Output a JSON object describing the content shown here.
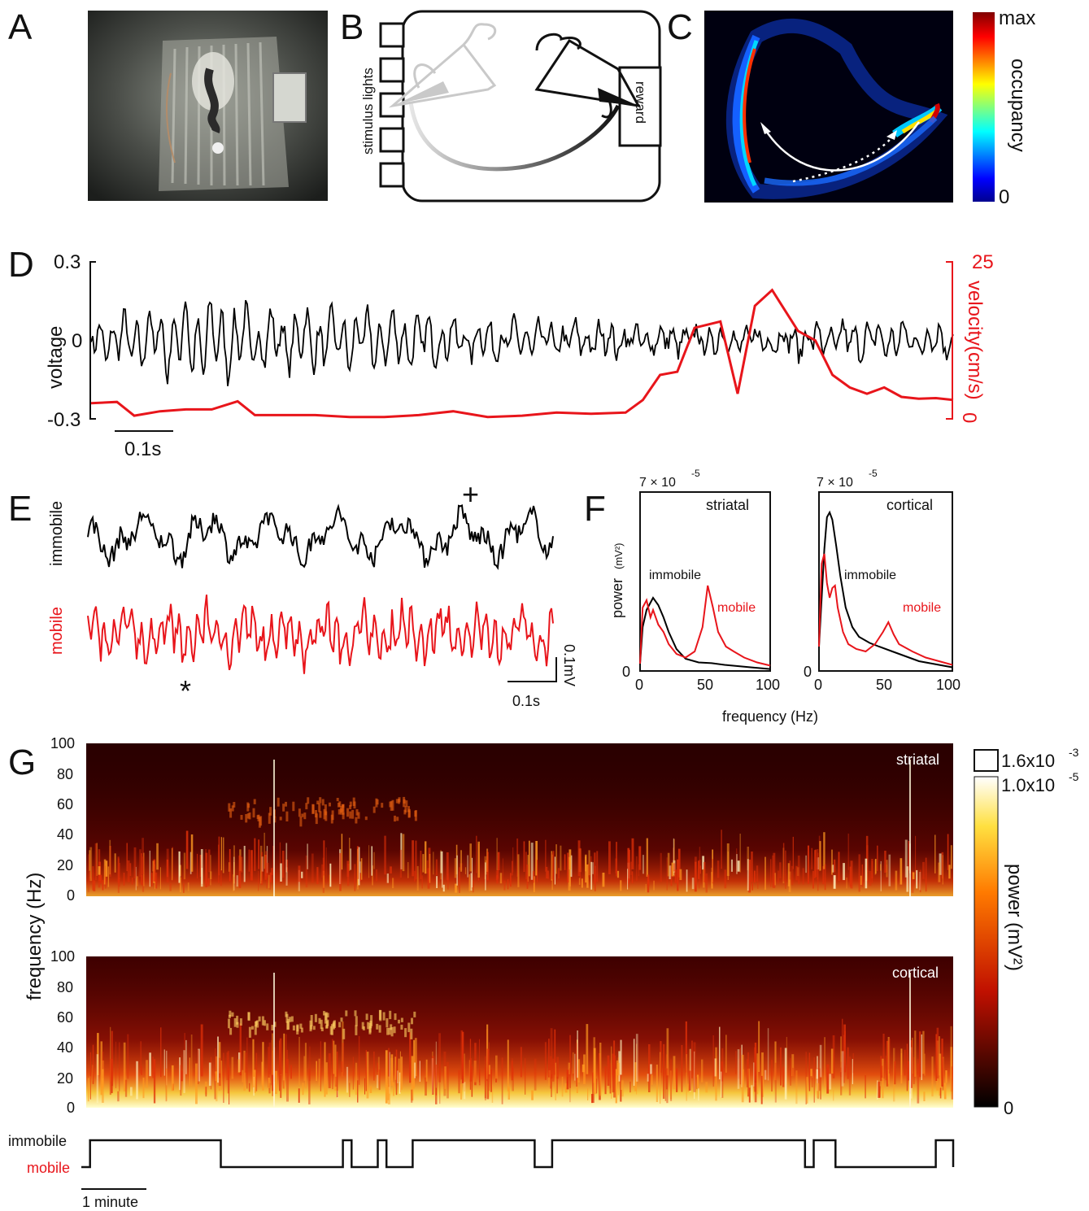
{
  "panels": {
    "A": {
      "label": "A"
    },
    "B": {
      "label": "B",
      "stimulus_label": "stimulus lights",
      "reward_label": "reward"
    },
    "C": {
      "label": "C",
      "colorbar_max": "max",
      "colorbar_min": "0",
      "colorbar_label": "occupancy"
    },
    "D": {
      "label": "D",
      "voltage_label": "voltage",
      "velocity_label": "velocity(cm/s)",
      "y_top": "0.3",
      "y_mid": "0",
      "y_bottom": "-0.3",
      "v_top": "25",
      "v_bottom": "0",
      "scale_label": "0.1s",
      "colors": {
        "lfp": "#000000",
        "velocity": "#e8151b"
      }
    },
    "E": {
      "label": "E",
      "immobile_label": "immobile",
      "mobile_label": "mobile",
      "plus": "+",
      "star": "*",
      "scale_v": "0.1mV",
      "scale_t": "0.1s"
    },
    "F": {
      "label": "F",
      "ylabel": "power",
      "yunit": "(mV²)",
      "xlabel": "frequency (Hz)",
      "exponent_base": "7 × 10",
      "exponent": "-5",
      "subplots": [
        {
          "title": "striatal",
          "immobile_label": "immobile",
          "mobile_label": "mobile"
        },
        {
          "title": "cortical",
          "immobile_label": "immobile",
          "mobile_label": "mobile"
        }
      ],
      "xticks": [
        "0",
        "50",
        "100"
      ],
      "y0": "0"
    },
    "G": {
      "label": "G",
      "ylabel": "frequency (Hz)",
      "yticks": [
        "100",
        "80",
        "60",
        "40",
        "20",
        "0"
      ],
      "striatal_title": "striatal",
      "cortical_title": "cortical",
      "cb_top_base": "1.6x10",
      "cb_top_exp": "-3",
      "cb_base": "1.0x10",
      "cb_exp": "-5",
      "cb_zero": "0",
      "cb_label": "power (mV²)",
      "state_immobile": "immobile",
      "state_mobile": "mobile",
      "scale_label": "1 minute"
    }
  },
  "chart_data": [
    {
      "type": "line",
      "panel": "F-striatal",
      "x_range": [
        0,
        100
      ],
      "series": [
        {
          "name": "immobile",
          "color": "#000000",
          "x": [
            0,
            2,
            5,
            8,
            10,
            14,
            18,
            22,
            28,
            35,
            45,
            55,
            65,
            75,
            85,
            100
          ],
          "y": [
            0.3,
            1.8,
            2.5,
            2.8,
            3.0,
            2.7,
            2.2,
            1.6,
            0.9,
            0.5,
            0.35,
            0.32,
            0.25,
            0.2,
            0.15,
            0.08
          ]
        },
        {
          "name": "mobile",
          "color": "#e8151b",
          "x": [
            0,
            2,
            5,
            8,
            10,
            14,
            18,
            22,
            28,
            35,
            42,
            48,
            52,
            56,
            60,
            66,
            72,
            80,
            90,
            100
          ],
          "y": [
            0.3,
            2.6,
            2.9,
            2.2,
            2.5,
            1.9,
            1.6,
            1.1,
            0.7,
            0.55,
            0.8,
            1.8,
            3.5,
            2.6,
            1.6,
            1.0,
            0.8,
            0.55,
            0.35,
            0.22
          ]
        }
      ]
    },
    {
      "type": "line",
      "panel": "F-cortical",
      "x_range": [
        0,
        100
      ],
      "series": [
        {
          "name": "immobile",
          "color": "#000000",
          "x": [
            0,
            2,
            4,
            6,
            8,
            10,
            13,
            16,
            20,
            25,
            30,
            38,
            45,
            55,
            65,
            75,
            85,
            100
          ],
          "y": [
            1.0,
            3.0,
            5.0,
            6.3,
            6.5,
            6.2,
            5.1,
            3.9,
            2.6,
            1.8,
            1.4,
            1.15,
            1.0,
            0.8,
            0.6,
            0.4,
            0.3,
            0.15
          ]
        },
        {
          "name": "mobile",
          "color": "#e8151b",
          "x": [
            0,
            2,
            4,
            6,
            8,
            10,
            12,
            14,
            18,
            22,
            28,
            35,
            42,
            48,
            52,
            56,
            60,
            70,
            80,
            90,
            100
          ],
          "y": [
            1.0,
            4.4,
            4.8,
            3.6,
            3.0,
            3.4,
            3.5,
            2.6,
            1.6,
            1.1,
            0.9,
            0.8,
            1.1,
            1.6,
            2.0,
            1.5,
            1.1,
            0.8,
            0.55,
            0.4,
            0.25
          ]
        }
      ]
    },
    {
      "type": "line",
      "panel": "D-velocity",
      "y_range": [
        0,
        25
      ],
      "series": [
        {
          "name": "velocity",
          "color": "#e8151b",
          "x": [
            0,
            3,
            5,
            8,
            11,
            14,
            17,
            19,
            22,
            26,
            30,
            34,
            38,
            42,
            46,
            50,
            54,
            58,
            62,
            64,
            66,
            68,
            70,
            73,
            75,
            77,
            79,
            82,
            84,
            86,
            88,
            90,
            92,
            94,
            96,
            98,
            100
          ],
          "y": [
            2.5,
            2.7,
            0.5,
            1.2,
            1.5,
            1.5,
            2.8,
            0.6,
            0.6,
            0.6,
            0.3,
            0.3,
            0.6,
            1.2,
            0.3,
            0.5,
            1.0,
            0.8,
            1.0,
            3.0,
            7.0,
            7.5,
            14.5,
            15.5,
            4.0,
            18.0,
            20.5,
            14.0,
            12.5,
            7.0,
            5.0,
            4.0,
            5.0,
            3.5,
            3.2,
            3.3,
            3.0
          ]
        }
      ]
    },
    {
      "type": "line",
      "panel": "G-behaviour-state",
      "states": [
        "mobile",
        "immobile"
      ],
      "series": [
        {
          "name": "state",
          "color": "#000000",
          "transitions_x": [
            0,
            1,
            16,
            30,
            31,
            34,
            35,
            36,
            37,
            37.3,
            37.6,
            38,
            52,
            54,
            83,
            84,
            86.5,
            98,
            100
          ],
          "state_after": [
            "mobile",
            "immobile",
            "mobile",
            "immobile",
            "mobile",
            "immobile",
            "mobile",
            "mobile",
            "mobile",
            "mobile",
            "mobile",
            "immobile",
            "mobile",
            "immobile",
            "mobile",
            "immobile",
            "mobile",
            "immobile",
            "mobile"
          ]
        }
      ]
    }
  ]
}
